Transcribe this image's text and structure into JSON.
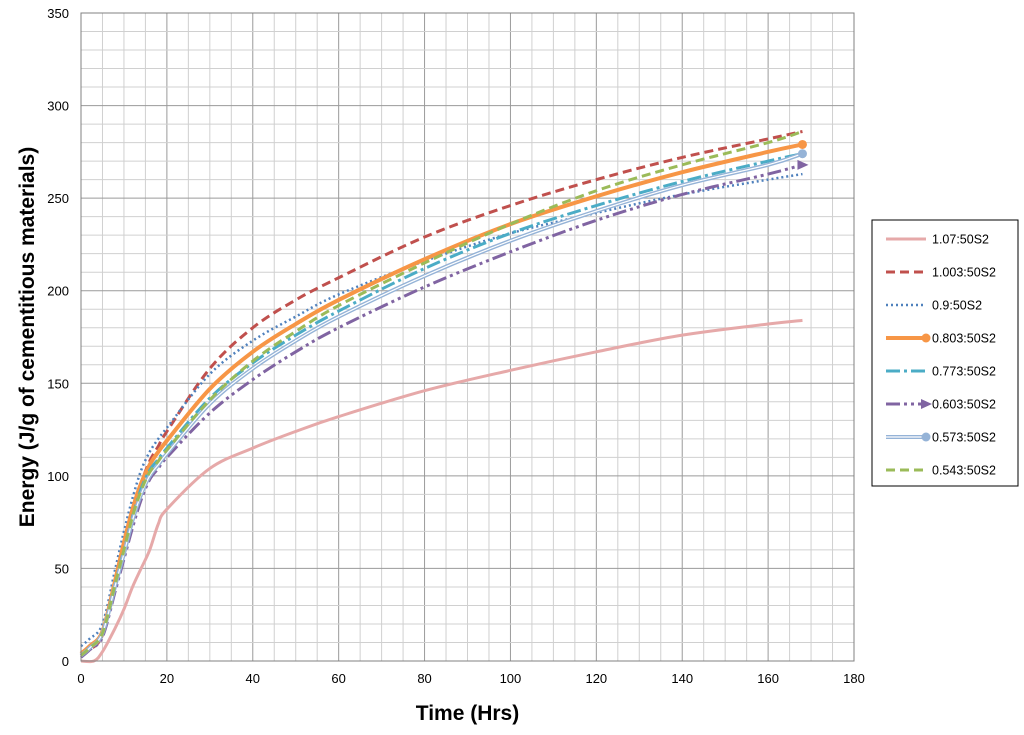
{
  "chart_data": {
    "type": "line",
    "title": "",
    "xlabel": "Time (Hrs)",
    "ylabel": "Energy (J/g of cementitious materials)",
    "xlim": [
      0,
      180
    ],
    "ylim": [
      0,
      350
    ],
    "xticks": [
      0,
      20,
      40,
      60,
      80,
      100,
      120,
      140,
      160,
      180
    ],
    "yticks": [
      0,
      50,
      100,
      150,
      200,
      250,
      300,
      350
    ],
    "grid": true,
    "legend_position": "right",
    "series": [
      {
        "name": "1.07:50S2",
        "color": "#e6a9a9",
        "style": "solid",
        "x": [
          0,
          3,
          5,
          8,
          10,
          12,
          14,
          16,
          18,
          20,
          30,
          40,
          50,
          60,
          80,
          100,
          120,
          140,
          160,
          168
        ],
        "y": [
          0,
          0,
          5,
          18,
          28,
          40,
          50,
          60,
          74,
          82,
          104,
          115,
          124,
          132,
          146,
          157,
          167,
          176,
          182,
          184
        ]
      },
      {
        "name": "1.003:50S2",
        "color": "#c0504d",
        "style": "dashed",
        "x": [
          0,
          2,
          5,
          8,
          10,
          12,
          14,
          16,
          18,
          20,
          30,
          40,
          50,
          60,
          80,
          100,
          120,
          140,
          160,
          168
        ],
        "y": [
          3,
          6,
          14,
          42,
          62,
          80,
          96,
          108,
          116,
          124,
          158,
          180,
          195,
          207,
          229,
          246,
          260,
          272,
          282,
          286
        ]
      },
      {
        "name": "0.9:50S2",
        "color": "#4f81bd",
        "style": "dotted",
        "x": [
          0,
          2,
          5,
          8,
          10,
          12,
          14,
          16,
          18,
          20,
          30,
          40,
          50,
          60,
          80,
          100,
          120,
          140,
          160,
          168
        ],
        "y": [
          8,
          12,
          20,
          50,
          70,
          88,
          103,
          113,
          120,
          126,
          155,
          173,
          186,
          198,
          216,
          231,
          242,
          252,
          260,
          263
        ]
      },
      {
        "name": "0.803:50S2",
        "color": "#f79646",
        "style": "thick",
        "x": [
          0,
          2,
          5,
          8,
          10,
          12,
          14,
          16,
          18,
          20,
          30,
          40,
          50,
          60,
          80,
          100,
          120,
          140,
          160,
          168
        ],
        "y": [
          4,
          8,
          16,
          44,
          64,
          82,
          96,
          106,
          113,
          119,
          147,
          167,
          182,
          195,
          217,
          236,
          251,
          264,
          275,
          279
        ]
      },
      {
        "name": "0.773:50S2",
        "color": "#4bacc6",
        "style": "dashdot",
        "x": [
          0,
          2,
          5,
          8,
          10,
          12,
          14,
          16,
          18,
          20,
          30,
          40,
          50,
          60,
          80,
          100,
          120,
          140,
          160,
          168
        ],
        "y": [
          3,
          7,
          15,
          42,
          60,
          78,
          93,
          103,
          109,
          115,
          142,
          161,
          176,
          189,
          212,
          231,
          246,
          259,
          270,
          274
        ]
      },
      {
        "name": "0.603:50S2",
        "color": "#8064a2",
        "style": "dashdotdot",
        "x": [
          0,
          2,
          5,
          8,
          10,
          12,
          14,
          16,
          18,
          20,
          30,
          40,
          50,
          60,
          80,
          100,
          120,
          140,
          160,
          168
        ],
        "y": [
          2,
          6,
          13,
          38,
          55,
          72,
          87,
          98,
          104,
          110,
          134,
          152,
          167,
          180,
          202,
          221,
          238,
          252,
          263,
          268
        ]
      },
      {
        "name": "0.573:50S2",
        "color": "#95b3d7",
        "style": "double",
        "x": [
          0,
          2,
          5,
          8,
          10,
          12,
          14,
          16,
          18,
          20,
          30,
          40,
          50,
          60,
          80,
          100,
          120,
          140,
          160,
          168
        ],
        "y": [
          3,
          7,
          15,
          41,
          58,
          76,
          90,
          100,
          106,
          112,
          139,
          158,
          173,
          186,
          208,
          227,
          243,
          257,
          268,
          274
        ]
      },
      {
        "name": "0.543:50S2",
        "color": "#9bbb59",
        "style": "dashed",
        "x": [
          0,
          2,
          5,
          8,
          10,
          12,
          14,
          16,
          18,
          20,
          30,
          40,
          50,
          60,
          80,
          100,
          120,
          140,
          160,
          168
        ],
        "y": [
          3,
          7,
          15,
          42,
          60,
          78,
          92,
          102,
          108,
          114,
          141,
          162,
          178,
          192,
          215,
          236,
          254,
          268,
          280,
          286
        ]
      }
    ]
  }
}
